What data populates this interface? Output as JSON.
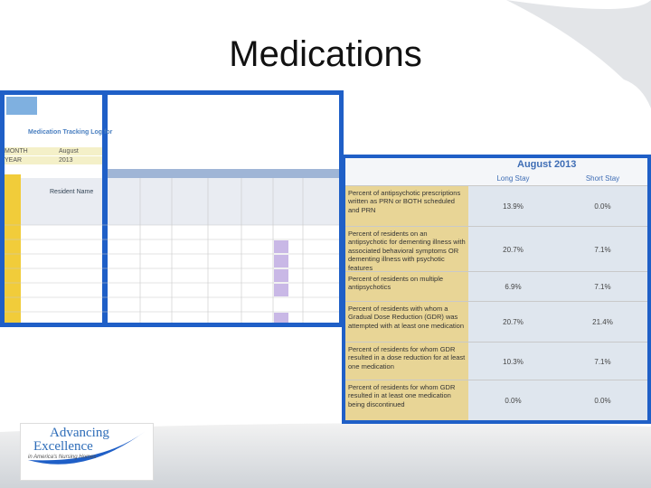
{
  "header": {
    "title": "Medications"
  },
  "left_log": {
    "title": "Medication Tracking Log for",
    "fields": [
      {
        "label": "MONTH",
        "value": "August"
      },
      {
        "label": "YEAR",
        "value": "2013"
      }
    ],
    "column_header": "Resident Name"
  },
  "right_table": {
    "title": "August 2013",
    "columns": [
      "Long Stay",
      "Short Stay"
    ],
    "rows": [
      {
        "label": "Percent of antipsychotic prescriptions written as PRN or BOTH scheduled and PRN",
        "values": [
          "13.9%",
          "0.0%"
        ]
      },
      {
        "label": "Percent of residents on an antipsychotic for dementing illness with associated behavioral symptoms OR dementing illness with psychotic features",
        "values": [
          "20.7%",
          "7.1%"
        ]
      },
      {
        "label": "Percent of residents on multiple antipsychotics",
        "values": [
          "6.9%",
          "7.1%"
        ]
      },
      {
        "label": "Percent of residents with whom a Gradual Dose Reduction (GDR) was attempted with at least one medication",
        "values": [
          "20.7%",
          "21.4%"
        ]
      },
      {
        "label": "Percent of residents for whom GDR resulted in a dose reduction for at least one medication",
        "values": [
          "10.3%",
          "7.1%"
        ]
      },
      {
        "label": "Percent of residents for whom GDR resulted in at least one medication being discontinued",
        "values": [
          "0.0%",
          "0.0%"
        ]
      }
    ]
  },
  "logo": {
    "lines": [
      "Advancing",
      "Excellence"
    ],
    "tagline": "in America's Nursing Homes"
  }
}
